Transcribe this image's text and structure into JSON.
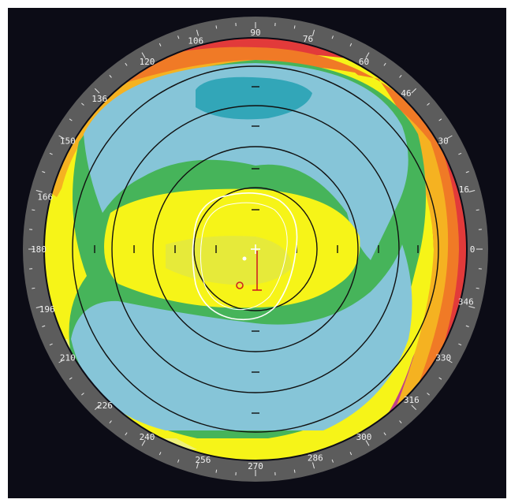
{
  "colors": {
    "background": "#0c0c16",
    "ring": "#5c5c5c",
    "tick": "#e8e8e8",
    "purple": "#7c55a8",
    "magenta": "#c0408a",
    "red": "#e23a3a",
    "orange": "#f07a26",
    "yellow_orange": "#f5b221",
    "light_yellow": "#eef07a",
    "yellow": "#f6f418",
    "green": "#46b45a",
    "light_blue": "#86c5d8",
    "teal": "#32a6b8",
    "contour_black": "#101010",
    "contour_white": "#ffffff",
    "marker_red": "#d02020"
  },
  "angle_labels": [
    {
      "angle": 0,
      "text": "0"
    },
    {
      "angle": 16,
      "text": "16"
    },
    {
      "angle": 30,
      "text": "30"
    },
    {
      "angle": 46,
      "text": "46"
    },
    {
      "angle": 60,
      "text": "60"
    },
    {
      "angle": 76,
      "text": "76"
    },
    {
      "angle": 90,
      "text": "90"
    },
    {
      "angle": 106,
      "text": "106"
    },
    {
      "angle": 120,
      "text": "120"
    },
    {
      "angle": 136,
      "text": "136"
    },
    {
      "angle": 150,
      "text": "150"
    },
    {
      "angle": 166,
      "text": "166"
    },
    {
      "angle": 180,
      "text": "180"
    },
    {
      "angle": 196,
      "text": "196"
    },
    {
      "angle": 210,
      "text": "210"
    },
    {
      "angle": 226,
      "text": "226"
    },
    {
      "angle": 240,
      "text": "240"
    },
    {
      "angle": 256,
      "text": "256"
    },
    {
      "angle": 270,
      "text": "270"
    },
    {
      "angle": 286,
      "text": "286"
    },
    {
      "angle": 300,
      "text": "300"
    },
    {
      "angle": 316,
      "text": "316"
    },
    {
      "angle": 330,
      "text": "330"
    },
    {
      "angle": 346,
      "text": "346"
    }
  ],
  "icons": {
    "center": "crosshair-icon",
    "pupil": "pupil-center-icon",
    "vertex": "corneal-vertex-icon"
  }
}
